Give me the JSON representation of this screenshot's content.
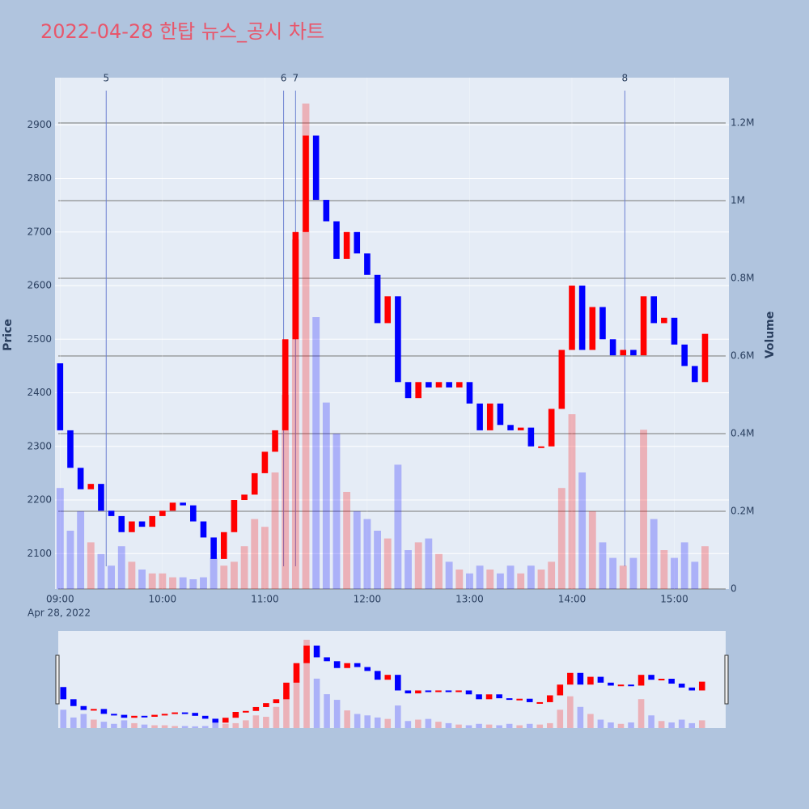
{
  "chart_data": {
    "type": "candlestick",
    "title": "2022-04-28 한탑 뉴스_공시 차트",
    "y_label": "Price",
    "y2_label": "Volume",
    "x_date_label": "Apr 28, 2022",
    "xlim": [
      "08:57",
      "15:32"
    ],
    "xticks": [
      "09:00",
      "10:00",
      "11:00",
      "12:00",
      "13:00",
      "14:00",
      "15:00"
    ],
    "ylim": [
      2034,
      2988
    ],
    "yticks": [
      2100,
      2200,
      2300,
      2400,
      2500,
      2600,
      2700,
      2800,
      2900
    ],
    "y2lim": [
      0,
      1316667
    ],
    "y2ticks": [
      0,
      {
        "value": 200000,
        "label": "0.2M"
      },
      {
        "value": 400000,
        "label": "0.4M"
      },
      {
        "value": 600000,
        "label": "0.6M"
      },
      {
        "value": 800000,
        "label": "0.8M"
      },
      {
        "value": 1000000,
        "label": "1M"
      },
      {
        "value": 1200000,
        "label": "1.2M"
      }
    ],
    "up_color": "#ff0000",
    "down_color": "#0000ff",
    "events": [
      {
        "label": 5,
        "x": "09:27"
      },
      {
        "label": 6,
        "x": "11:11"
      },
      {
        "label": 7,
        "x": "11:18"
      },
      {
        "label": 8,
        "x": "14:31"
      }
    ],
    "x": [
      "09:00",
      "09:06",
      "09:12",
      "09:18",
      "09:24",
      "09:30",
      "09:36",
      "09:42",
      "09:48",
      "09:54",
      "10:00",
      "10:06",
      "10:12",
      "10:18",
      "10:24",
      "10:30",
      "10:36",
      "10:42",
      "10:48",
      "10:54",
      "11:00",
      "11:06",
      "11:12",
      "11:18",
      "11:24",
      "11:30",
      "11:36",
      "11:42",
      "11:48",
      "11:54",
      "12:00",
      "12:06",
      "12:12",
      "12:18",
      "12:24",
      "12:30",
      "12:36",
      "12:42",
      "12:48",
      "12:54",
      "13:00",
      "13:06",
      "13:12",
      "13:18",
      "13:24",
      "13:30",
      "13:36",
      "13:42",
      "13:48",
      "13:54",
      "14:00",
      "14:06",
      "14:12",
      "14:18",
      "14:24",
      "14:30",
      "14:36",
      "14:42",
      "14:48",
      "14:54",
      "15:00",
      "15:06",
      "15:12",
      "15:18"
    ],
    "open": [
      2455,
      2330,
      2260,
      2220,
      2230,
      2180,
      2170,
      2140,
      2160,
      2150,
      2170,
      2180,
      2195,
      2190,
      2160,
      2130,
      2090,
      2140,
      2200,
      2210,
      2250,
      2290,
      2330,
      2500,
      2700,
      2880,
      2760,
      2720,
      2650,
      2700,
      2660,
      2620,
      2530,
      2580,
      2420,
      2390,
      2420,
      2410,
      2420,
      2410,
      2420,
      2380,
      2330,
      2380,
      2340,
      2330,
      2335,
      2300,
      2300,
      2370,
      2480,
      2600,
      2480,
      2560,
      2500,
      2470,
      2480,
      2470,
      2580,
      2530,
      2540,
      2490,
      2450,
      2420
    ],
    "close": [
      2330,
      2260,
      2220,
      2230,
      2180,
      2170,
      2140,
      2160,
      2150,
      2170,
      2180,
      2195,
      2190,
      2160,
      2130,
      2090,
      2140,
      2200,
      2210,
      2250,
      2290,
      2330,
      2500,
      2700,
      2880,
      2760,
      2720,
      2650,
      2700,
      2660,
      2620,
      2530,
      2580,
      2420,
      2390,
      2420,
      2410,
      2420,
      2410,
      2420,
      2380,
      2330,
      2380,
      2340,
      2330,
      2335,
      2300,
      2300,
      2370,
      2480,
      2600,
      2480,
      2560,
      2500,
      2470,
      2480,
      2470,
      2580,
      2530,
      2540,
      2490,
      2450,
      2420,
      2510
    ],
    "volume": [
      260000,
      150000,
      200000,
      120000,
      90000,
      60000,
      110000,
      70000,
      50000,
      40000,
      40000,
      30000,
      30000,
      25000,
      30000,
      80000,
      60000,
      70000,
      110000,
      180000,
      160000,
      300000,
      500000,
      900000,
      1250000,
      700000,
      480000,
      400000,
      250000,
      200000,
      180000,
      150000,
      130000,
      320000,
      100000,
      120000,
      130000,
      90000,
      70000,
      50000,
      40000,
      60000,
      50000,
      40000,
      60000,
      40000,
      60000,
      50000,
      70000,
      260000,
      450000,
      300000,
      200000,
      120000,
      80000,
      60000,
      80000,
      410000,
      180000,
      100000,
      80000,
      120000,
      70000,
      110000
    ]
  }
}
